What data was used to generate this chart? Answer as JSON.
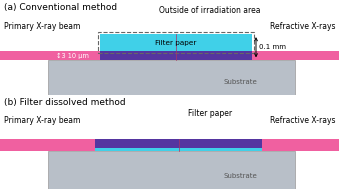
{
  "bg_color": "#ffffff",
  "title_a": "(a) Conventional method",
  "title_b": "(b) Filter dissolved method",
  "label_primary": "Primary X-ray beam",
  "label_refractive": "Refractive X-rays",
  "label_outside": "Outside of irradiation area",
  "label_filter_a": "Filter paper",
  "label_filter_b": "Filter paper",
  "label_substrate_a": "Substrate",
  "label_substrate_b": "Substrate",
  "label_10um": "↕3 10 μm",
  "label_01mm": "0.1 mm",
  "color_beam": "#f060a0",
  "color_filter_purple": "#5535a0",
  "color_filter_cyan": "#40d0e8",
  "color_substrate": "#b8bfc8",
  "color_dashed_box": "#666666",
  "fig_width": 3.39,
  "fig_height": 1.89,
  "dpi": 100
}
